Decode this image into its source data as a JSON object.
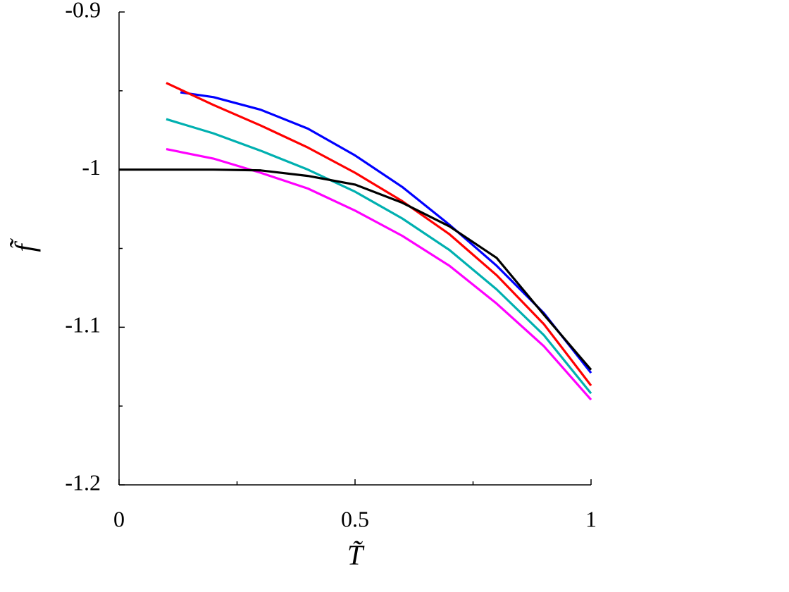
{
  "chart_data": {
    "type": "line",
    "xlabel": "T̃",
    "ylabel": "f̃",
    "xlim": [
      0,
      1
    ],
    "ylim": [
      -1.2,
      -0.9
    ],
    "xticks": [
      0,
      0.5,
      1
    ],
    "yticks": [
      -1.2,
      -1.1,
      -1,
      -0.9
    ],
    "xminorticks": [
      0.25,
      0.75
    ],
    "yminorticks": [
      -1.15,
      -1.05,
      -0.95
    ],
    "series": [
      {
        "color": "#0000ff",
        "x": [
          0.13,
          0.2,
          0.3,
          0.4,
          0.5,
          0.6,
          0.7,
          0.8,
          0.9,
          1
        ],
        "values": [
          -0.951,
          -0.954,
          -0.962,
          -0.974,
          -0.991,
          -1.011,
          -1.035,
          -1.061,
          -1.091,
          -1.129
        ]
      },
      {
        "color": "#ff0000",
        "x": [
          0.1,
          0.2,
          0.3,
          0.4,
          0.5,
          0.6,
          0.7,
          0.8,
          0.9,
          1
        ],
        "values": [
          -0.945,
          -0.959,
          -0.972,
          -0.986,
          -1.002,
          -1.02,
          -1.041,
          -1.067,
          -1.098,
          -1.137
        ]
      },
      {
        "color": "#00b0b0",
        "x": [
          0.1,
          0.2,
          0.3,
          0.4,
          0.5,
          0.6,
          0.7,
          0.8,
          0.9,
          1
        ],
        "values": [
          -0.968,
          -0.977,
          -0.988,
          -1.0,
          -1.014,
          -1.031,
          -1.051,
          -1.076,
          -1.105,
          -1.142
        ]
      },
      {
        "color": "#ff00ff",
        "x": [
          0.1,
          0.2,
          0.3,
          0.4,
          0.5,
          0.6,
          0.7,
          0.8,
          0.9,
          1
        ],
        "values": [
          -0.987,
          -0.993,
          -1.002,
          -1.012,
          -1.026,
          -1.042,
          -1.061,
          -1.085,
          -1.112,
          -1.146
        ]
      },
      {
        "color": "#000000",
        "x": [
          0,
          0.1,
          0.2,
          0.3,
          0.4,
          0.5,
          0.6,
          0.7,
          0.8,
          0.9,
          1
        ],
        "values": [
          -1.0,
          -1.0,
          -1.0,
          -1.0005,
          -1.004,
          -1.0095,
          -1.021,
          -1.036,
          -1.056,
          -1.092,
          -1.127
        ]
      }
    ]
  }
}
